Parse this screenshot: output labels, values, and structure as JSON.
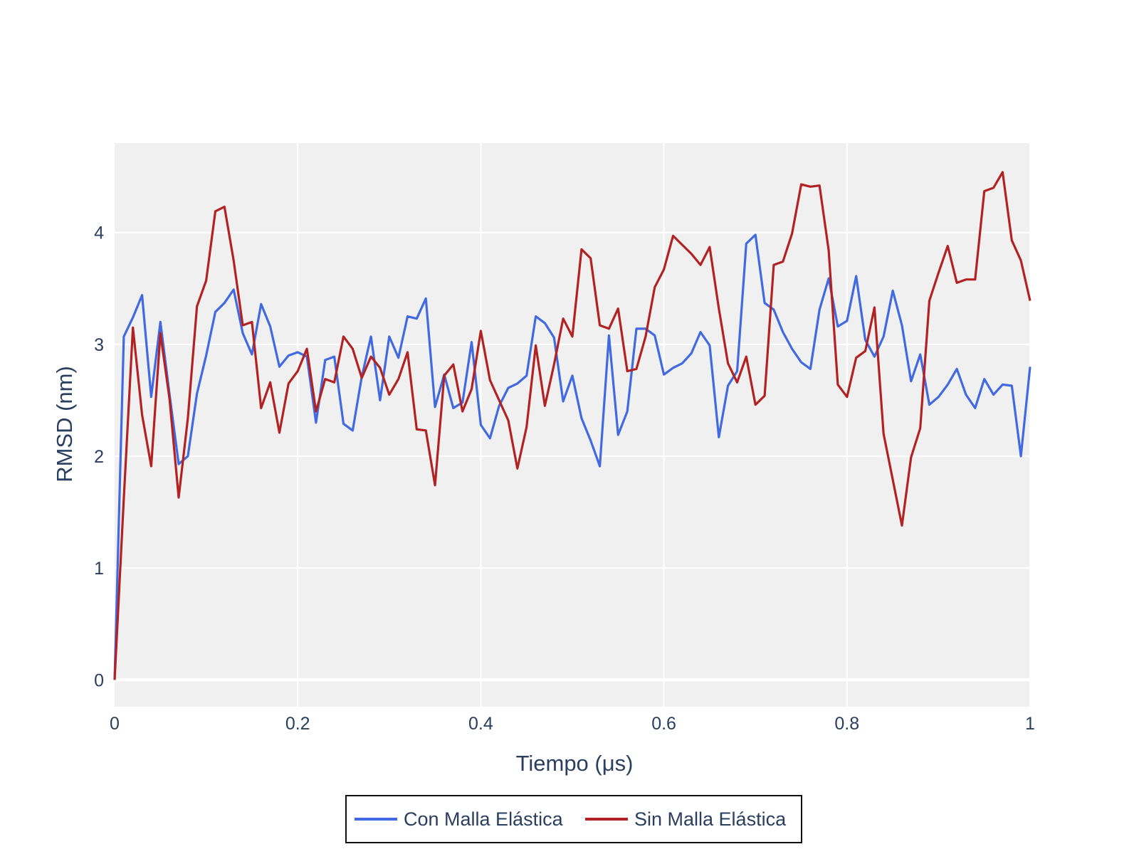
{
  "chart_data": {
    "type": "line",
    "xlabel": "Tiempo (μs)",
    "ylabel": "RMSD (nm)",
    "xlim": [
      0,
      1
    ],
    "ylim": [
      -0.24,
      4.8
    ],
    "x_ticks": [
      0,
      0.2,
      0.4,
      0.6,
      0.8,
      1
    ],
    "x_tick_labels": [
      "0",
      "0.2",
      "0.4",
      "0.6",
      "0.8",
      "1"
    ],
    "y_ticks": [
      0,
      1,
      2,
      3,
      4
    ],
    "y_tick_labels": [
      "0",
      "1",
      "2",
      "3",
      "4"
    ],
    "grid": true,
    "legend_position": "bottom-center",
    "plot_background": "#f0f0f0",
    "grid_color": "#ffffff",
    "x": [
      0,
      0.01,
      0.02,
      0.03,
      0.04,
      0.05,
      0.06,
      0.07,
      0.08,
      0.09,
      0.1,
      0.11,
      0.12,
      0.13,
      0.14,
      0.15,
      0.16,
      0.17,
      0.18,
      0.19,
      0.2,
      0.21,
      0.22,
      0.23,
      0.24,
      0.25,
      0.26,
      0.27,
      0.28,
      0.29,
      0.3,
      0.31,
      0.32,
      0.33,
      0.34,
      0.35,
      0.36,
      0.37,
      0.38,
      0.39,
      0.4,
      0.41,
      0.42,
      0.43,
      0.44,
      0.45,
      0.46,
      0.47,
      0.48,
      0.49,
      0.5,
      0.51,
      0.52,
      0.53,
      0.54,
      0.55,
      0.56,
      0.57,
      0.58,
      0.59,
      0.6,
      0.61,
      0.62,
      0.63,
      0.64,
      0.65,
      0.66,
      0.67,
      0.68,
      0.69,
      0.7,
      0.71,
      0.72,
      0.73,
      0.74,
      0.75,
      0.76,
      0.77,
      0.78,
      0.79,
      0.8,
      0.81,
      0.82,
      0.83,
      0.84,
      0.85,
      0.86,
      0.87,
      0.88,
      0.89,
      0.9,
      0.91,
      0.92,
      0.93,
      0.94,
      0.95,
      0.96,
      0.97,
      0.98,
      0.99,
      1.0
    ],
    "series": [
      {
        "name": "Con Malla Elástica",
        "color": "#4169e1",
        "values": [
          0,
          3.07,
          3.24,
          3.44,
          2.53,
          3.2,
          2.55,
          1.93,
          2.0,
          2.56,
          2.9,
          3.29,
          3.37,
          3.49,
          3.1,
          2.91,
          3.36,
          3.16,
          2.8,
          2.9,
          2.93,
          2.89,
          2.3,
          2.86,
          2.89,
          2.29,
          2.23,
          2.71,
          3.07,
          2.5,
          3.07,
          2.88,
          3.25,
          3.23,
          3.41,
          2.44,
          2.73,
          2.43,
          2.48,
          3.02,
          2.28,
          2.16,
          2.45,
          2.61,
          2.65,
          2.72,
          3.25,
          3.19,
          3.06,
          2.49,
          2.72,
          2.34,
          2.14,
          1.91,
          3.08,
          2.19,
          2.4,
          3.14,
          3.14,
          3.08,
          2.73,
          2.79,
          2.83,
          2.92,
          3.11,
          2.99,
          2.17,
          2.63,
          2.76,
          3.9,
          3.98,
          3.37,
          3.31,
          3.11,
          2.96,
          2.84,
          2.78,
          3.31,
          3.59,
          3.16,
          3.21,
          3.61,
          3.04,
          2.89,
          3.07,
          3.48,
          3.17,
          2.67,
          2.91,
          2.46,
          2.53,
          2.64,
          2.78,
          2.55,
          2.43,
          2.69,
          2.55,
          2.64,
          2.63,
          2.0,
          2.8
        ]
      },
      {
        "name": "Sin Malla Elástica",
        "color": "#b22222",
        "values": [
          0,
          1.62,
          3.15,
          2.37,
          1.91,
          3.1,
          2.51,
          1.63,
          2.34,
          3.34,
          3.57,
          4.19,
          4.23,
          3.75,
          3.17,
          3.2,
          2.43,
          2.66,
          2.21,
          2.65,
          2.76,
          2.96,
          2.4,
          2.69,
          2.66,
          3.07,
          2.96,
          2.7,
          2.89,
          2.79,
          2.55,
          2.69,
          2.93,
          2.24,
          2.23,
          1.74,
          2.72,
          2.82,
          2.4,
          2.6,
          3.12,
          2.68,
          2.5,
          2.32,
          1.89,
          2.26,
          2.99,
          2.45,
          2.82,
          3.23,
          3.07,
          3.85,
          3.77,
          3.17,
          3.14,
          3.32,
          2.76,
          2.78,
          3.07,
          3.51,
          3.67,
          3.97,
          3.89,
          3.81,
          3.71,
          3.87,
          3.32,
          2.83,
          2.66,
          2.89,
          2.46,
          2.54,
          3.71,
          3.74,
          3.99,
          4.43,
          4.41,
          4.42,
          3.84,
          2.64,
          2.53,
          2.88,
          2.94,
          3.33,
          2.2,
          1.79,
          1.38,
          1.99,
          2.25,
          3.39,
          3.64,
          3.88,
          3.55,
          3.58,
          3.58,
          4.37,
          4.4,
          4.54,
          3.93,
          3.75,
          3.39
        ]
      }
    ]
  }
}
